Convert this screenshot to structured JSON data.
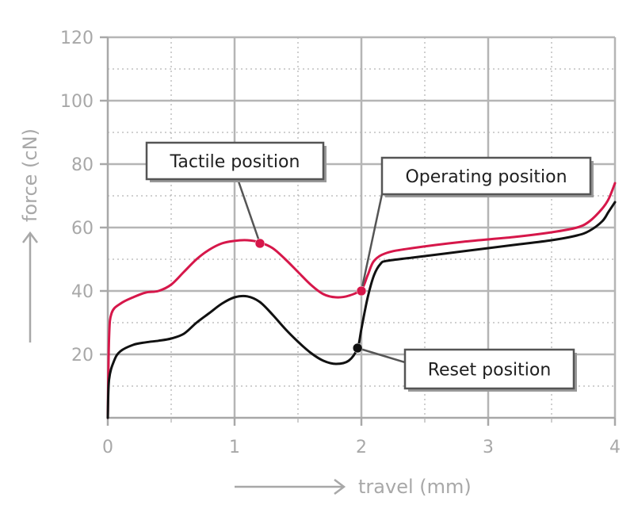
{
  "chart_data": {
    "type": "line",
    "title": "",
    "xlabel": "travel (mm)",
    "ylabel": "force (cN)",
    "xlim": [
      0,
      4
    ],
    "ylim": [
      0,
      120
    ],
    "x_ticks": [
      0,
      1,
      2,
      3,
      4
    ],
    "y_ticks": [
      20,
      40,
      60,
      80,
      100,
      120
    ],
    "grid": {
      "major": "solid",
      "minor": "dotted"
    },
    "series": [
      {
        "color": "#d6174a",
        "points": [
          [
            0,
            0
          ],
          [
            0.01,
            25
          ],
          [
            0.03,
            33
          ],
          [
            0.1,
            36
          ],
          [
            0.2,
            38
          ],
          [
            0.3,
            39.5
          ],
          [
            0.4,
            40
          ],
          [
            0.5,
            42
          ],
          [
            0.6,
            46
          ],
          [
            0.7,
            50
          ],
          [
            0.8,
            53
          ],
          [
            0.9,
            55
          ],
          [
            1.0,
            55.8
          ],
          [
            1.1,
            56
          ],
          [
            1.2,
            55.3
          ],
          [
            1.3,
            53.5
          ],
          [
            1.4,
            50
          ],
          [
            1.5,
            46
          ],
          [
            1.6,
            42
          ],
          [
            1.7,
            39
          ],
          [
            1.8,
            38
          ],
          [
            1.9,
            38.5
          ],
          [
            2.0,
            40.5
          ],
          [
            2.05,
            45
          ],
          [
            2.1,
            49.5
          ],
          [
            2.2,
            52
          ],
          [
            2.4,
            53.5
          ],
          [
            2.8,
            55.5
          ],
          [
            3.2,
            57
          ],
          [
            3.5,
            58.5
          ],
          [
            3.7,
            60
          ],
          [
            3.8,
            62
          ],
          [
            3.9,
            66
          ],
          [
            3.95,
            69
          ],
          [
            4.0,
            74
          ]
        ]
      },
      {
        "color": "#111111",
        "points": [
          [
            0,
            0
          ],
          [
            0.01,
            12
          ],
          [
            0.05,
            18
          ],
          [
            0.1,
            21
          ],
          [
            0.2,
            23
          ],
          [
            0.3,
            23.8
          ],
          [
            0.4,
            24.3
          ],
          [
            0.5,
            25
          ],
          [
            0.6,
            26.5
          ],
          [
            0.7,
            30
          ],
          [
            0.8,
            33
          ],
          [
            0.9,
            36
          ],
          [
            1.0,
            38
          ],
          [
            1.1,
            38.3
          ],
          [
            1.2,
            36.5
          ],
          [
            1.3,
            32.5
          ],
          [
            1.4,
            28
          ],
          [
            1.5,
            24
          ],
          [
            1.6,
            20.5
          ],
          [
            1.7,
            18
          ],
          [
            1.8,
            17
          ],
          [
            1.9,
            18
          ],
          [
            1.97,
            22
          ],
          [
            2.0,
            28
          ],
          [
            2.05,
            38
          ],
          [
            2.1,
            45
          ],
          [
            2.15,
            48.5
          ],
          [
            2.2,
            49.5
          ],
          [
            2.4,
            50.5
          ],
          [
            2.8,
            52.5
          ],
          [
            3.2,
            54.5
          ],
          [
            3.5,
            56
          ],
          [
            3.7,
            57.5
          ],
          [
            3.8,
            59
          ],
          [
            3.9,
            62
          ],
          [
            3.95,
            65
          ],
          [
            4.0,
            68
          ]
        ]
      }
    ],
    "annotations": [
      {
        "label": "Tactile position",
        "x": 1.2,
        "y": 55,
        "color": "#d6174a"
      },
      {
        "label": "Operating position",
        "x": 2.0,
        "y": 40,
        "color": "#d6174a"
      },
      {
        "label": "Reset position",
        "x": 1.97,
        "y": 22,
        "color": "#111111"
      }
    ]
  }
}
